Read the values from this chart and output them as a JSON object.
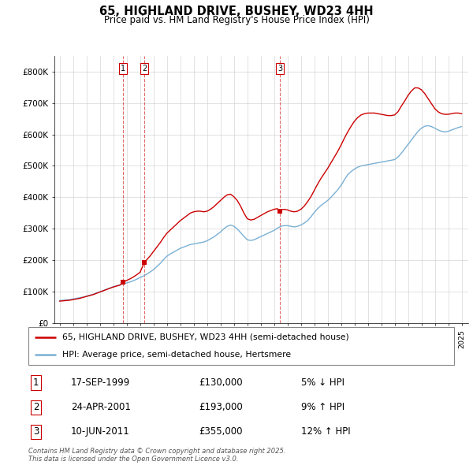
{
  "title_line1": "65, HIGHLAND DRIVE, BUSHEY, WD23 4HH",
  "title_line2": "Price paid vs. HM Land Registry's House Price Index (HPI)",
  "ylim": [
    0,
    850000
  ],
  "yticks": [
    0,
    100000,
    200000,
    300000,
    400000,
    500000,
    600000,
    700000,
    800000
  ],
  "ytick_labels": [
    "£0",
    "£100K",
    "£200K",
    "£300K",
    "£400K",
    "£500K",
    "£600K",
    "£700K",
    "£800K"
  ],
  "legend_line1": "65, HIGHLAND DRIVE, BUSHEY, WD23 4HH (semi-detached house)",
  "legend_line2": "HPI: Average price, semi-detached house, Hertsmere",
  "red_color": "#cc0000",
  "blue_color": "#7ab0d4",
  "transaction_labels": [
    "1",
    "2",
    "3"
  ],
  "transaction_dates": [
    "17-SEP-1999",
    "24-APR-2001",
    "10-JUN-2011"
  ],
  "transaction_prices": [
    130000,
    193000,
    355000
  ],
  "transaction_pct": [
    "5% ↓ HPI",
    "9% ↑ HPI",
    "12% ↑ HPI"
  ],
  "transaction_years": [
    1999.71,
    2001.31,
    2011.44
  ],
  "footer": "Contains HM Land Registry data © Crown copyright and database right 2025.\nThis data is licensed under the Open Government Licence v3.0.",
  "hpi_years": [
    1995.0,
    1995.25,
    1995.5,
    1995.75,
    1996.0,
    1996.25,
    1996.5,
    1996.75,
    1997.0,
    1997.25,
    1997.5,
    1997.75,
    1998.0,
    1998.25,
    1998.5,
    1998.75,
    1999.0,
    1999.25,
    1999.5,
    1999.75,
    2000.0,
    2000.25,
    2000.5,
    2000.75,
    2001.0,
    2001.25,
    2001.5,
    2001.75,
    2002.0,
    2002.25,
    2002.5,
    2002.75,
    2003.0,
    2003.25,
    2003.5,
    2003.75,
    2004.0,
    2004.25,
    2004.5,
    2004.75,
    2005.0,
    2005.25,
    2005.5,
    2005.75,
    2006.0,
    2006.25,
    2006.5,
    2006.75,
    2007.0,
    2007.25,
    2007.5,
    2007.75,
    2008.0,
    2008.25,
    2008.5,
    2008.75,
    2009.0,
    2009.25,
    2009.5,
    2009.75,
    2010.0,
    2010.25,
    2010.5,
    2010.75,
    2011.0,
    2011.25,
    2011.5,
    2011.75,
    2012.0,
    2012.25,
    2012.5,
    2012.75,
    2013.0,
    2013.25,
    2013.5,
    2013.75,
    2014.0,
    2014.25,
    2014.5,
    2014.75,
    2015.0,
    2015.25,
    2015.5,
    2015.75,
    2016.0,
    2016.25,
    2016.5,
    2016.75,
    2017.0,
    2017.25,
    2017.5,
    2017.75,
    2018.0,
    2018.25,
    2018.5,
    2018.75,
    2019.0,
    2019.25,
    2019.5,
    2019.75,
    2020.0,
    2020.25,
    2020.5,
    2020.75,
    2021.0,
    2021.25,
    2021.5,
    2021.75,
    2022.0,
    2022.25,
    2022.5,
    2022.75,
    2023.0,
    2023.25,
    2023.5,
    2023.75,
    2024.0,
    2024.25,
    2024.5,
    2024.75,
    2025.0
  ],
  "hpi_values": [
    72000,
    73000,
    74000,
    75000,
    77000,
    79000,
    81000,
    83000,
    86000,
    89000,
    92000,
    96000,
    100000,
    104000,
    108000,
    112000,
    116000,
    119000,
    122000,
    125000,
    128000,
    131000,
    135000,
    140000,
    145000,
    150000,
    156000,
    163000,
    170000,
    180000,
    190000,
    202000,
    213000,
    220000,
    226000,
    232000,
    238000,
    242000,
    246000,
    250000,
    252000,
    254000,
    256000,
    258000,
    262000,
    268000,
    274000,
    282000,
    290000,
    300000,
    308000,
    312000,
    308000,
    300000,
    288000,
    276000,
    265000,
    263000,
    265000,
    270000,
    275000,
    280000,
    285000,
    290000,
    295000,
    302000,
    308000,
    310000,
    310000,
    308000,
    306000,
    308000,
    312000,
    318000,
    326000,
    338000,
    352000,
    364000,
    374000,
    382000,
    390000,
    400000,
    412000,
    424000,
    438000,
    456000,
    472000,
    482000,
    490000,
    496000,
    500000,
    502000,
    504000,
    506000,
    508000,
    510000,
    512000,
    514000,
    516000,
    518000,
    520000,
    528000,
    540000,
    554000,
    568000,
    582000,
    596000,
    610000,
    620000,
    626000,
    628000,
    625000,
    620000,
    614000,
    610000,
    608000,
    610000,
    614000,
    618000,
    622000,
    625000
  ],
  "red_years": [
    1995.0,
    1995.25,
    1995.5,
    1995.75,
    1996.0,
    1996.25,
    1996.5,
    1996.75,
    1997.0,
    1997.25,
    1997.5,
    1997.75,
    1998.0,
    1998.25,
    1998.5,
    1998.75,
    1999.0,
    1999.25,
    1999.5,
    1999.71,
    2000.0,
    2000.25,
    2000.5,
    2000.75,
    2001.0,
    2001.31,
    2001.5,
    2001.75,
    2002.0,
    2002.25,
    2002.5,
    2002.75,
    2003.0,
    2003.25,
    2003.5,
    2003.75,
    2004.0,
    2004.25,
    2004.5,
    2004.75,
    2005.0,
    2005.25,
    2005.5,
    2005.75,
    2006.0,
    2006.25,
    2006.5,
    2006.75,
    2007.0,
    2007.25,
    2007.5,
    2007.75,
    2008.0,
    2008.25,
    2008.5,
    2008.75,
    2009.0,
    2009.25,
    2009.5,
    2009.75,
    2010.0,
    2010.25,
    2010.5,
    2010.75,
    2011.0,
    2011.25,
    2011.44,
    2011.5,
    2011.75,
    2012.0,
    2012.25,
    2012.5,
    2012.75,
    2013.0,
    2013.25,
    2013.5,
    2013.75,
    2014.0,
    2014.25,
    2014.5,
    2014.75,
    2015.0,
    2015.25,
    2015.5,
    2015.75,
    2016.0,
    2016.25,
    2016.5,
    2016.75,
    2017.0,
    2017.25,
    2017.5,
    2017.75,
    2018.0,
    2018.25,
    2018.5,
    2018.75,
    2019.0,
    2019.25,
    2019.5,
    2019.75,
    2020.0,
    2020.25,
    2020.5,
    2020.75,
    2021.0,
    2021.25,
    2021.5,
    2021.75,
    2022.0,
    2022.25,
    2022.5,
    2022.75,
    2023.0,
    2023.25,
    2023.5,
    2023.75,
    2024.0,
    2024.25,
    2024.5,
    2024.75,
    2025.0
  ],
  "red_values": [
    70000,
    71000,
    72000,
    73000,
    75000,
    77000,
    79000,
    82000,
    85000,
    88000,
    91000,
    95000,
    99000,
    103000,
    107000,
    111000,
    115000,
    118000,
    121000,
    130000,
    136000,
    141000,
    147000,
    154000,
    162000,
    193000,
    202000,
    214000,
    228000,
    242000,
    256000,
    272000,
    286000,
    296000,
    306000,
    316000,
    326000,
    334000,
    342000,
    350000,
    354000,
    356000,
    356000,
    354000,
    356000,
    362000,
    370000,
    380000,
    390000,
    400000,
    408000,
    410000,
    402000,
    390000,
    372000,
    350000,
    332000,
    328000,
    330000,
    336000,
    342000,
    348000,
    354000,
    358000,
    362000,
    364000,
    355000,
    360000,
    362000,
    360000,
    356000,
    354000,
    356000,
    362000,
    372000,
    386000,
    402000,
    422000,
    442000,
    460000,
    476000,
    492000,
    510000,
    528000,
    546000,
    566000,
    588000,
    608000,
    626000,
    642000,
    654000,
    662000,
    666000,
    668000,
    668000,
    668000,
    666000,
    664000,
    662000,
    660000,
    660000,
    662000,
    672000,
    690000,
    706000,
    724000,
    738000,
    748000,
    748000,
    742000,
    730000,
    714000,
    698000,
    682000,
    672000,
    666000,
    664000,
    664000,
    666000,
    668000,
    668000,
    666000
  ]
}
